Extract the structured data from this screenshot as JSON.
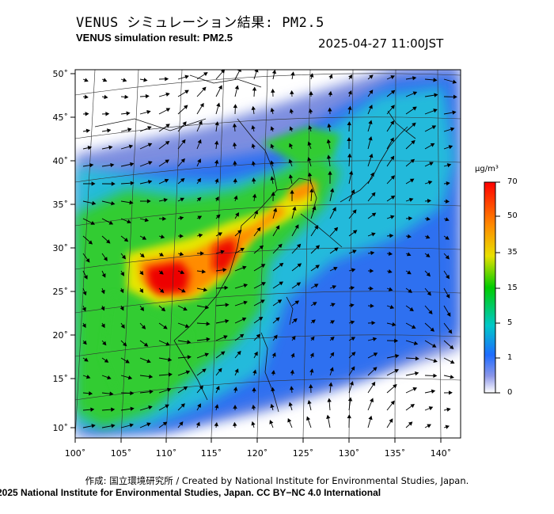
{
  "header": {
    "title_jp": "VENUS シミュレーション結果: PM2.5",
    "title_en": "VENUS simulation result: PM2.5",
    "timestamp": "2025-04-27 11:00JST"
  },
  "axes": {
    "lat_labels": [
      "50˚",
      "45˚",
      "40˚",
      "35˚",
      "30˚",
      "25˚",
      "20˚",
      "15˚",
      "10˚"
    ],
    "lon_labels": [
      "100˚",
      "105˚",
      "110˚",
      "115˚",
      "120˚",
      "125˚",
      "130˚",
      "135˚",
      "140˚"
    ]
  },
  "colorbar": {
    "unit": "μg/m³",
    "labels": [
      "70",
      "50",
      "35",
      "15",
      "5",
      "1",
      "0"
    ],
    "colors": [
      "#ff0000",
      "#ff8800",
      "#ffdd00",
      "#00cc00",
      "#00cccc",
      "#1e6cff",
      "#8c96e8",
      "#ffffff"
    ]
  },
  "map_colors": {
    "ocean_low": "#7d8ee0",
    "ocean_mid": "#1e6cff",
    "cyan": "#22c8d8",
    "green": "#33cc33",
    "yellow": "#e6e600",
    "orange": "#ff8c00",
    "red": "#ee0000"
  },
  "footer": {
    "credit_line": "作成: 国立環境研究所 / Created by National Institute for Environmental Studies, Japan.",
    "license_line": "2025 National Institute for Environmental Studies, Japan. CC BY−NC 4.0 International"
  }
}
